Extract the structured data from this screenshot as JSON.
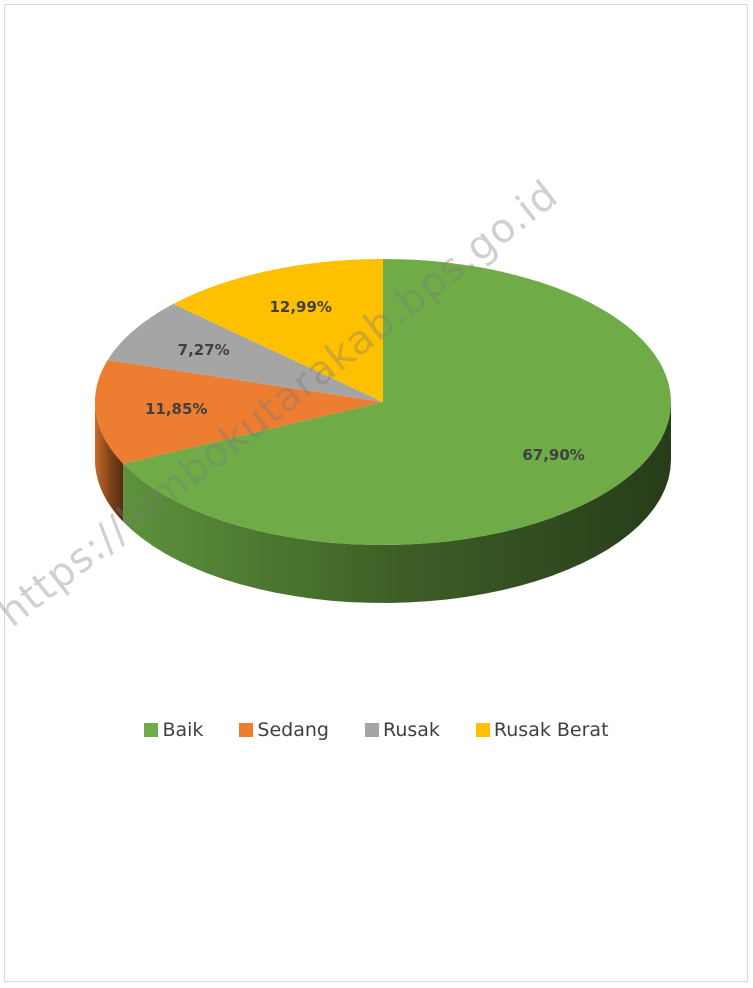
{
  "chart_data": {
    "type": "pie",
    "title": "",
    "categories": [
      "Baik",
      "Sedang",
      "Rusak",
      "Rusak Berat"
    ],
    "values": [
      67.9,
      11.85,
      7.27,
      12.99
    ],
    "data_labels": [
      "67,90%",
      "11,85%",
      "7,27%",
      "12,99%"
    ],
    "colors": [
      "#6fac47",
      "#ed7d31",
      "#a5a5a5",
      "#ffc000"
    ],
    "style": "3d",
    "legend_position": "bottom"
  },
  "legend": {
    "items": [
      {
        "label": "Baik",
        "color": "#6fac47"
      },
      {
        "label": "Sedang",
        "color": "#ed7d31"
      },
      {
        "label": "Rusak",
        "color": "#a5a5a5"
      },
      {
        "label": "Rusak Berat",
        "color": "#ffc000"
      }
    ]
  },
  "watermark": {
    "text": "https://lombokutarakab.bps.go.id"
  }
}
